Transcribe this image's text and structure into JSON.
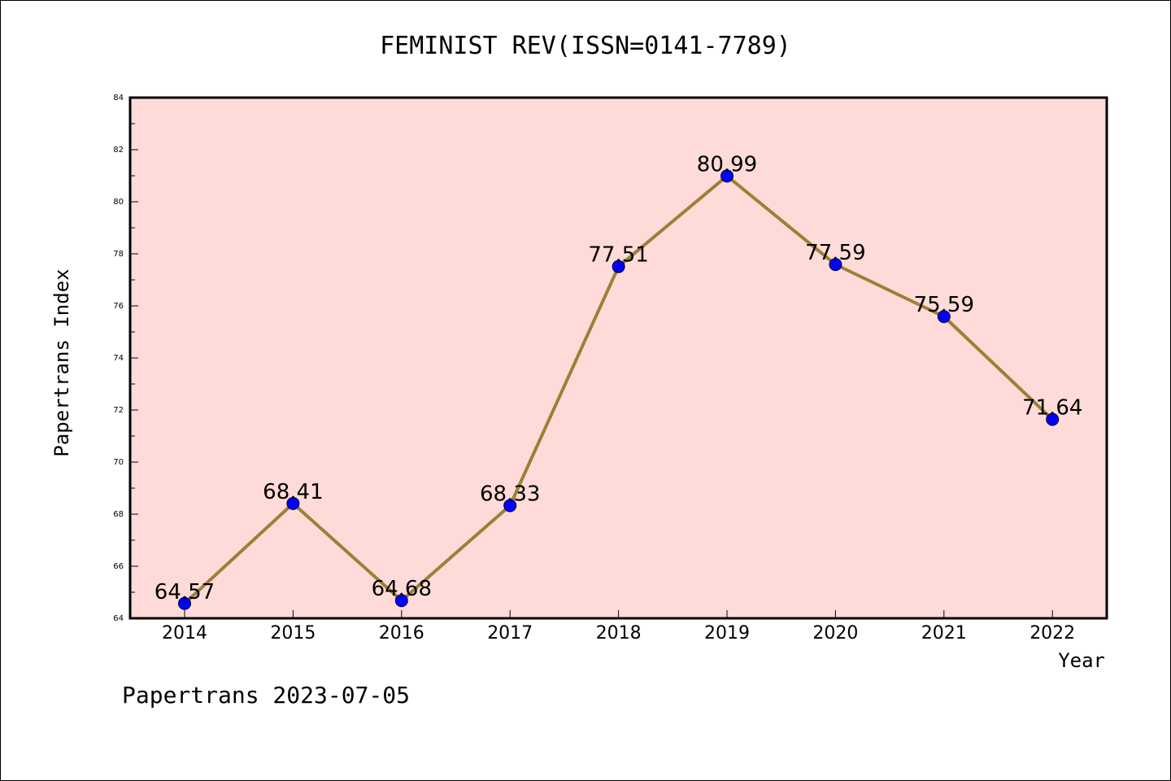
{
  "chart_data": {
    "type": "line",
    "title": "FEMINIST REV(ISSN=0141-7789)",
    "xlabel": "Year",
    "ylabel": "Papertrans Index",
    "categories": [
      "2014",
      "2015",
      "2016",
      "2017",
      "2018",
      "2019",
      "2020",
      "2021",
      "2022"
    ],
    "series": [
      {
        "values": [
          64.57,
          68.41,
          64.68,
          68.33,
          77.51,
          80.99,
          77.59,
          75.59,
          71.64
        ],
        "labels": [
          "64.57",
          "68.41",
          "64.68",
          "68.33",
          "77.51",
          "80.99",
          "77.59",
          "75.59",
          "71.64"
        ]
      }
    ],
    "ylim": [
      64,
      84
    ],
    "yticks": [
      "64",
      "66",
      "68",
      "70",
      "72",
      "74",
      "76",
      "78",
      "80",
      "82",
      "84"
    ],
    "grid": false,
    "legend": "none",
    "colors": {
      "plot_background": "#fedbd8",
      "line": "#9b8038",
      "marker": "#0000ff"
    }
  },
  "footer": "Papertrans 2023-07-05"
}
